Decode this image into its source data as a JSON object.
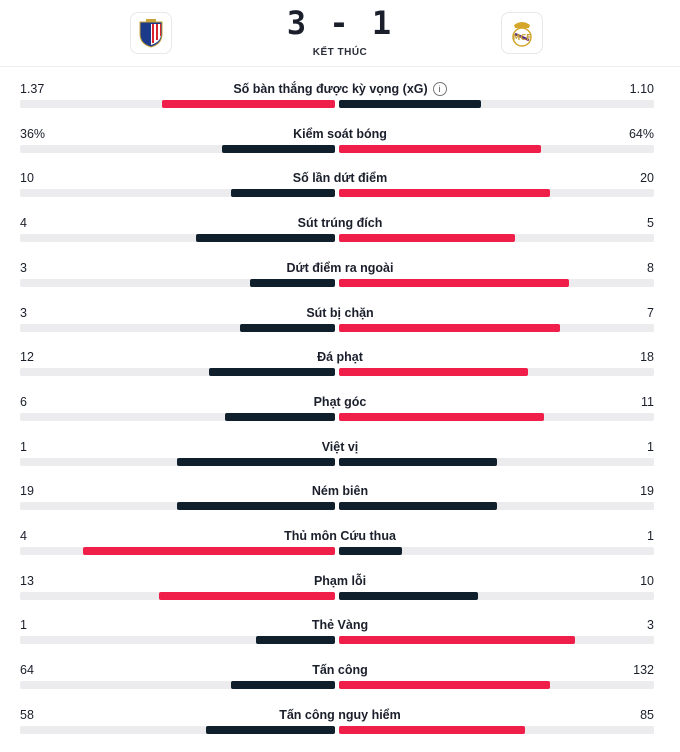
{
  "match": {
    "home_score": "3",
    "away_score": "1",
    "separator": "-",
    "status": "KẾT THÚC",
    "home_crest_icon": "atletico-madrid-crest-icon",
    "away_crest_icon": "real-madrid-crest-icon"
  },
  "colors": {
    "leader": "#ef1f4a",
    "trailer": "#0f1f2c",
    "track": "#ececef"
  },
  "stats": [
    {
      "label": "Số bàn thắng được kỳ vọng (xG)",
      "home": "1.37",
      "away": "1.10",
      "home_share": 0.55,
      "away_share": 0.45,
      "leader": "home",
      "info": true
    },
    {
      "label": "Kiểm soát bóng",
      "home": "36%",
      "away": "64%",
      "home_share": 0.36,
      "away_share": 0.64,
      "leader": "away"
    },
    {
      "label": "Số lần dứt điểm",
      "home": "10",
      "away": "20",
      "home_share": 0.33,
      "away_share": 0.67,
      "leader": "away"
    },
    {
      "label": "Sút trúng đích",
      "home": "4",
      "away": "5",
      "home_share": 0.44,
      "away_share": 0.56,
      "leader": "away"
    },
    {
      "label": "Dứt điểm ra ngoài",
      "home": "3",
      "away": "8",
      "home_share": 0.27,
      "away_share": 0.73,
      "leader": "away"
    },
    {
      "label": "Sút bị chặn",
      "home": "3",
      "away": "7",
      "home_share": 0.3,
      "away_share": 0.7,
      "leader": "away"
    },
    {
      "label": "Đá phạt",
      "home": "12",
      "away": "18",
      "home_share": 0.4,
      "away_share": 0.6,
      "leader": "away"
    },
    {
      "label": "Phạt góc",
      "home": "6",
      "away": "11",
      "home_share": 0.35,
      "away_share": 0.65,
      "leader": "away"
    },
    {
      "label": "Việt vị",
      "home": "1",
      "away": "1",
      "home_share": 0.5,
      "away_share": 0.5,
      "leader": "none"
    },
    {
      "label": "Ném biên",
      "home": "19",
      "away": "19",
      "home_share": 0.5,
      "away_share": 0.5,
      "leader": "none"
    },
    {
      "label": "Thủ môn Cứu thua",
      "home": "4",
      "away": "1",
      "home_share": 0.8,
      "away_share": 0.2,
      "leader": "home"
    },
    {
      "label": "Phạm lỗi",
      "home": "13",
      "away": "10",
      "home_share": 0.56,
      "away_share": 0.44,
      "leader": "home"
    },
    {
      "label": "Thẻ Vàng",
      "home": "1",
      "away": "3",
      "home_share": 0.25,
      "away_share": 0.75,
      "leader": "away"
    },
    {
      "label": "Tấn công",
      "home": "64",
      "away": "132",
      "home_share": 0.33,
      "away_share": 0.67,
      "leader": "away"
    },
    {
      "label": "Tấn công nguy hiểm",
      "home": "58",
      "away": "85",
      "home_share": 0.41,
      "away_share": 0.59,
      "leader": "away"
    }
  ]
}
